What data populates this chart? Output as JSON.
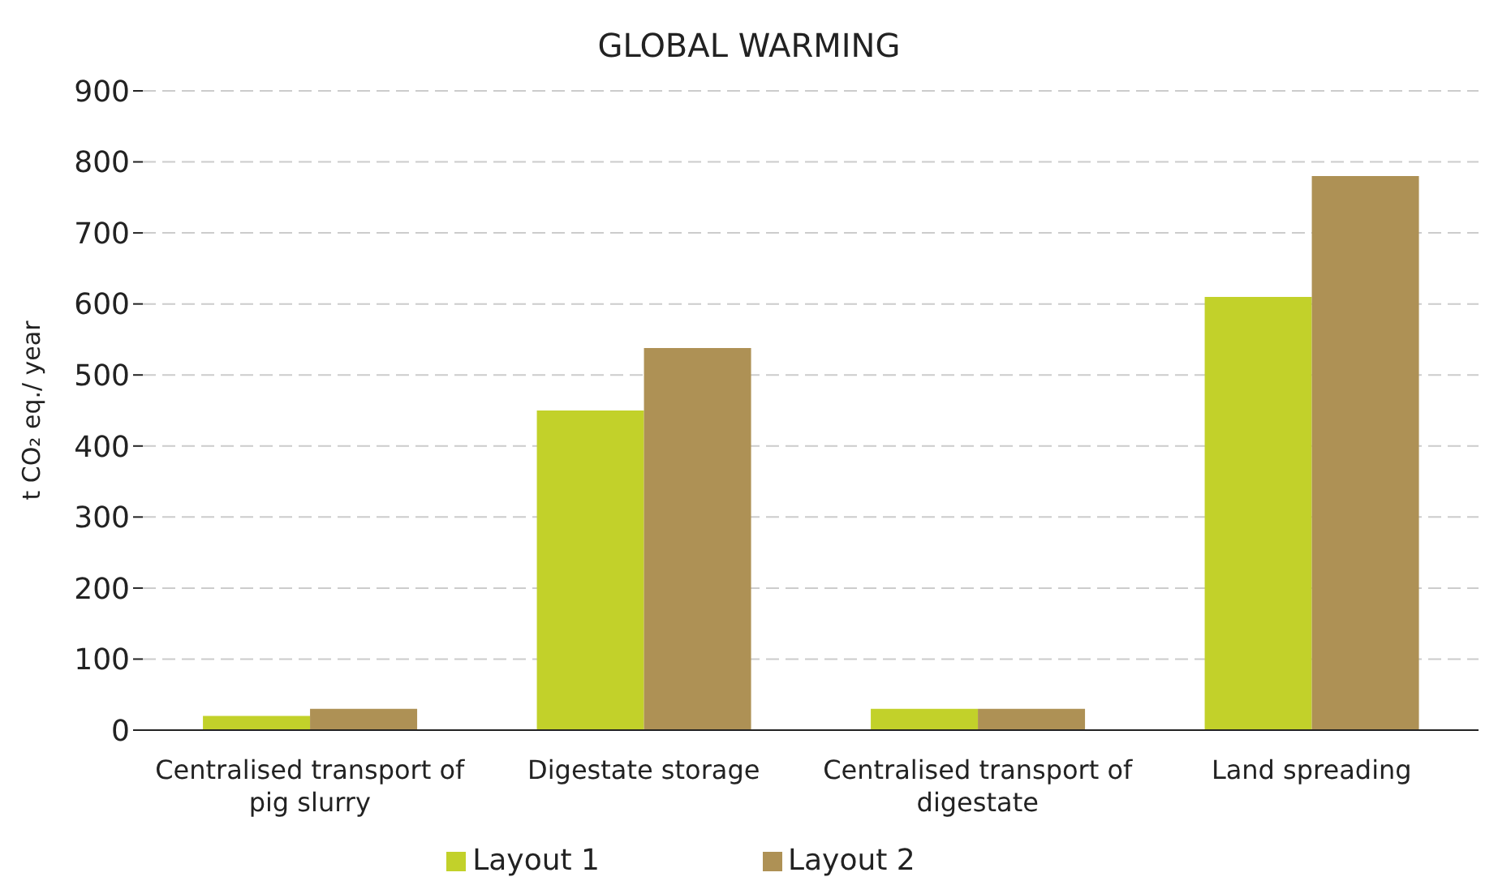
{
  "chart_data": {
    "type": "bar",
    "title": "GLOBAL WARMING",
    "ylabel": "t CO₂ eq./ year",
    "categories": [
      "Centralised transport of pig slurry",
      "Digestate storage",
      "Centralised transport of digestate",
      "Land spreading"
    ],
    "series": [
      {
        "name": "Layout 1",
        "color": "#c2d12a",
        "values": [
          20,
          450,
          30,
          610
        ]
      },
      {
        "name": "Layout 2",
        "color": "#ae9155",
        "values": [
          30,
          538,
          30,
          780
        ]
      }
    ],
    "ylim": [
      0,
      900
    ],
    "yticks": [
      0,
      100,
      200,
      300,
      400,
      500,
      600,
      700,
      800,
      900
    ],
    "grid": "y",
    "legend": "bottom"
  }
}
